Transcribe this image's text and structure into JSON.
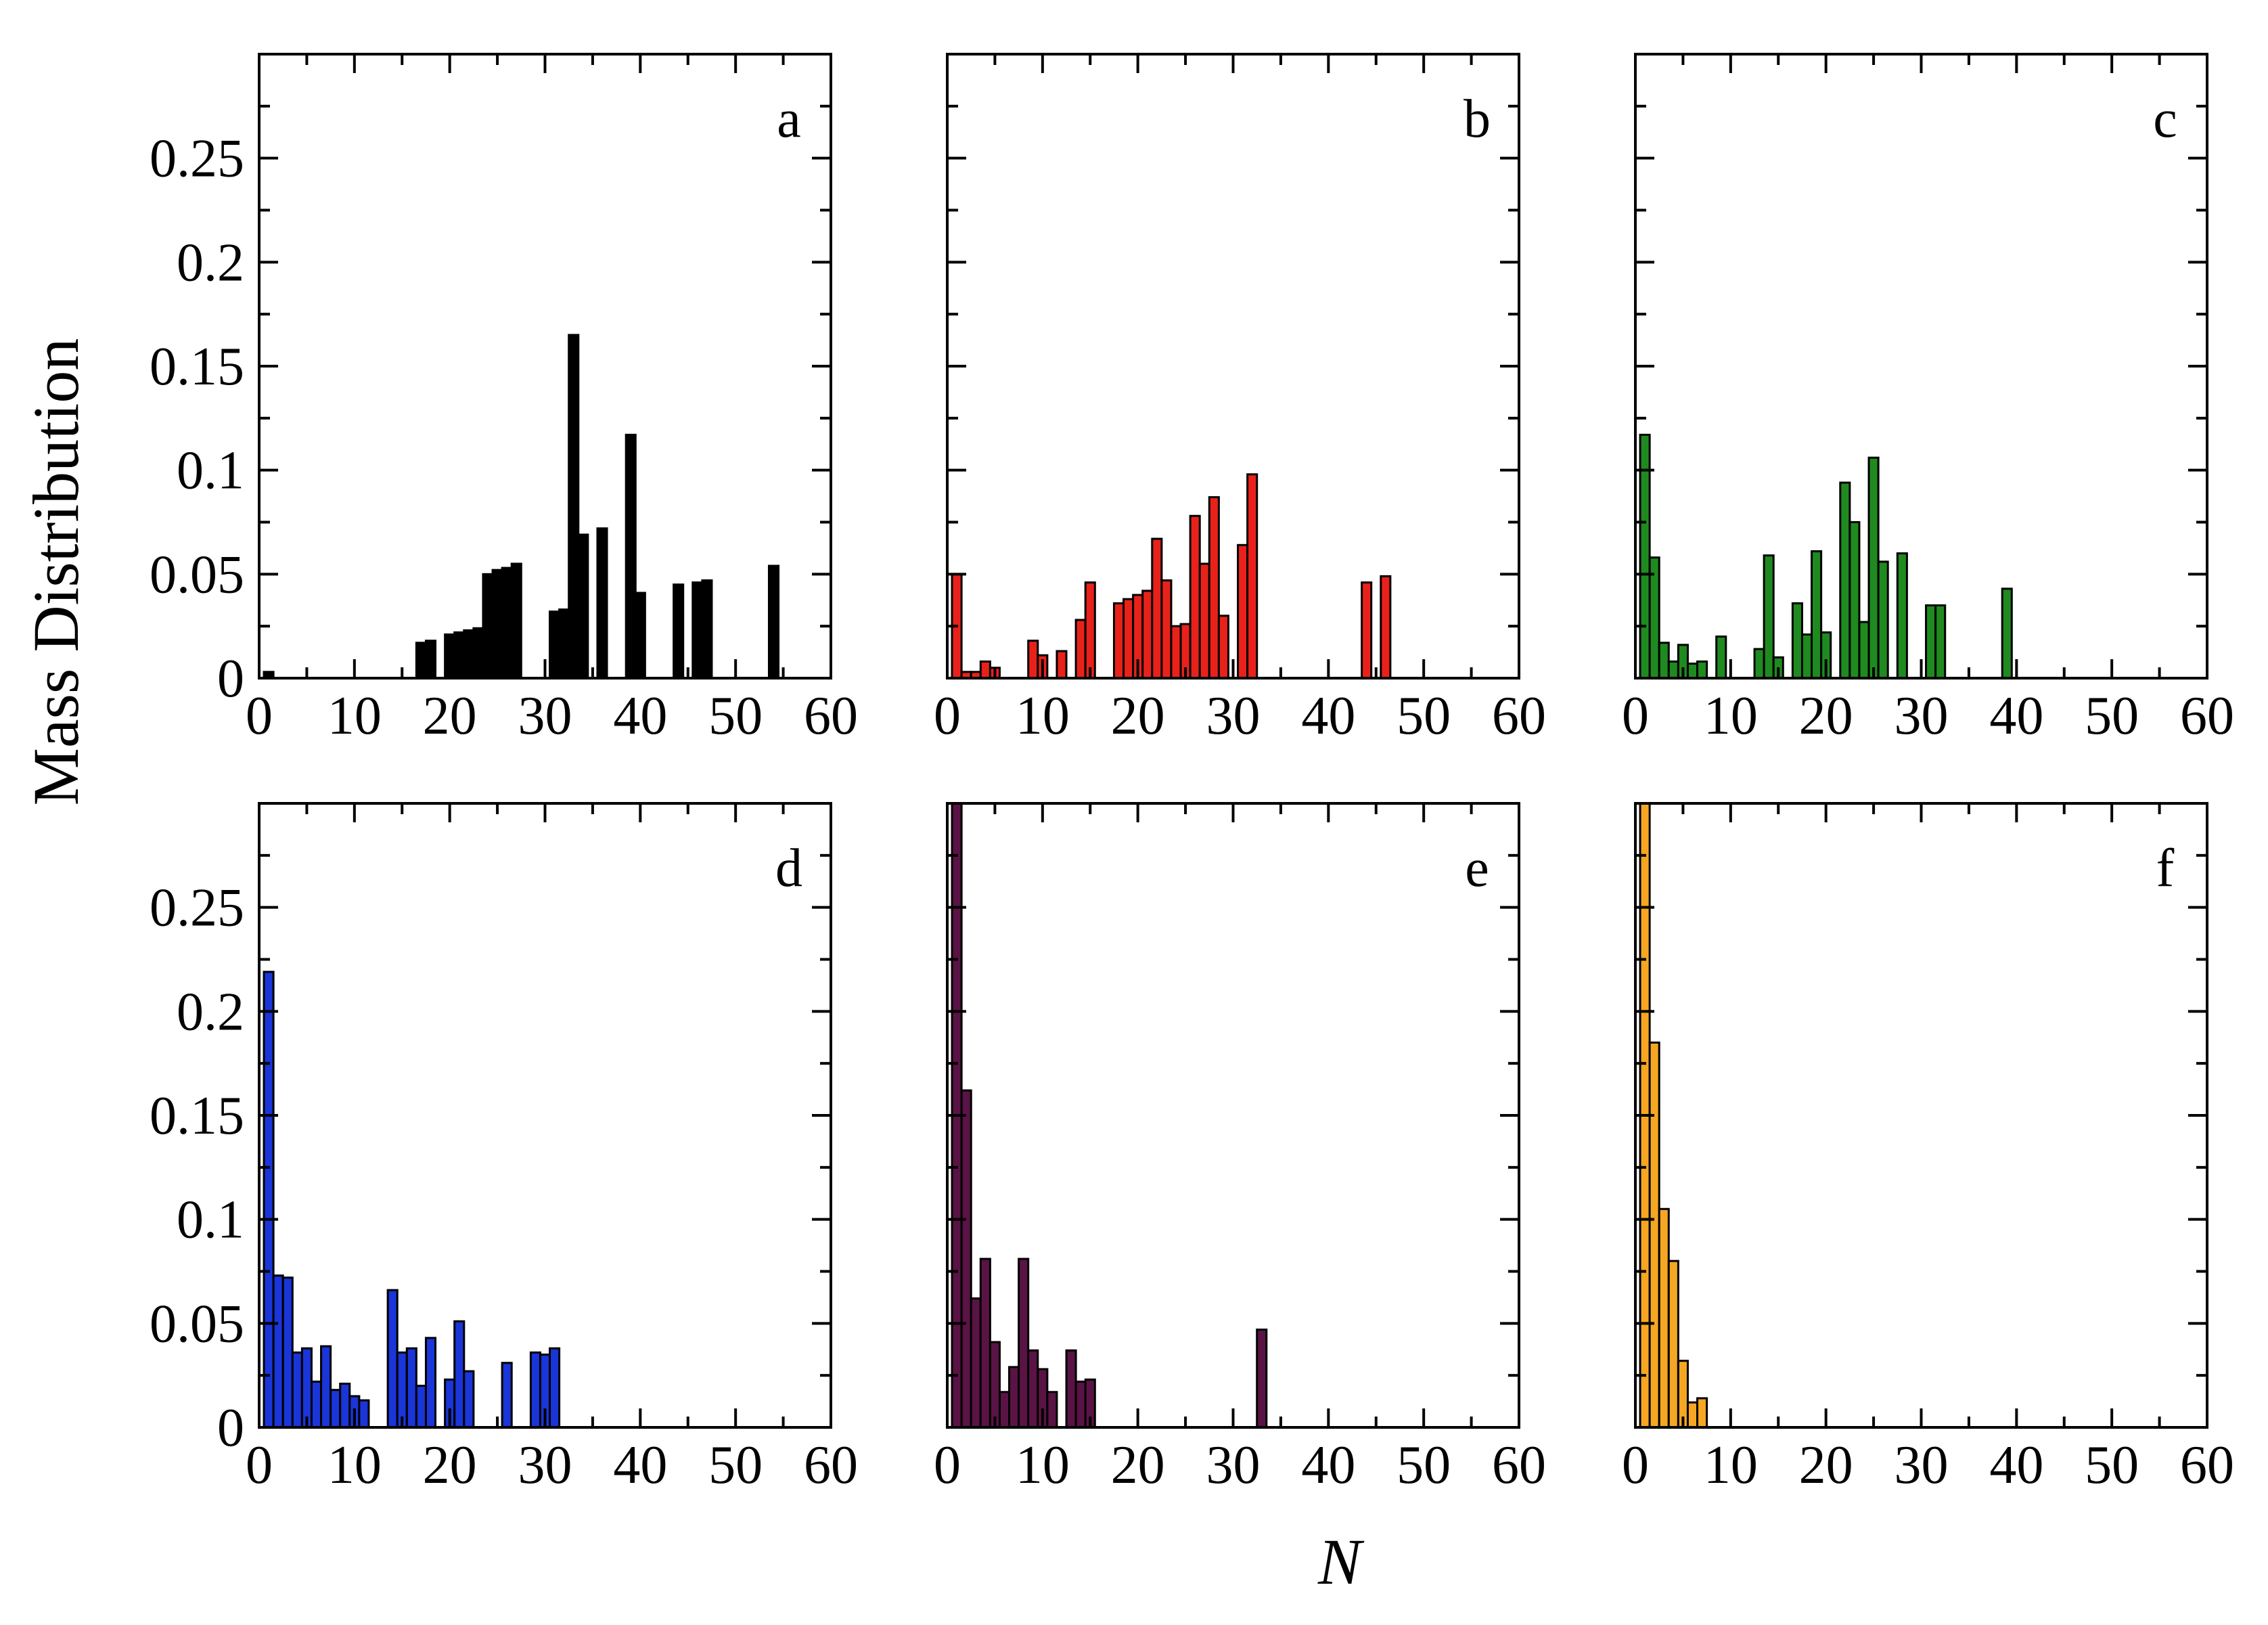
{
  "figure": {
    "ylabel": "Mass Distribution",
    "xlabel": "N"
  },
  "chart_data": [
    {
      "panel": "a",
      "type": "bar",
      "color": "#000000",
      "xlim": [
        0,
        60
      ],
      "ylim": [
        0,
        0.3
      ],
      "xticks": [
        0,
        10,
        20,
        30,
        40,
        50,
        60
      ],
      "yticks": [
        0,
        0.05,
        0.1,
        0.15,
        0.2,
        0.25
      ],
      "x": [
        1,
        17,
        18,
        20,
        21,
        22,
        23,
        24,
        25,
        26,
        27,
        31,
        32,
        33,
        34,
        36,
        39,
        40,
        44,
        46,
        47,
        54
      ],
      "values": [
        0.003,
        0.017,
        0.018,
        0.021,
        0.022,
        0.023,
        0.024,
        0.05,
        0.052,
        0.053,
        0.055,
        0.032,
        0.033,
        0.165,
        0.069,
        0.072,
        0.117,
        0.041,
        0.045,
        0.046,
        0.047,
        0.054
      ]
    },
    {
      "panel": "b",
      "type": "bar",
      "color": "#e8221b",
      "xlim": [
        0,
        60
      ],
      "ylim": [
        0,
        0.3
      ],
      "xticks": [
        0,
        10,
        20,
        30,
        40,
        50,
        60
      ],
      "yticks": [
        0,
        0.05,
        0.1,
        0.15,
        0.2,
        0.25
      ],
      "x": [
        1,
        2,
        3,
        4,
        5,
        9,
        10,
        12,
        14,
        15,
        18,
        19,
        20,
        21,
        22,
        23,
        24,
        25,
        26,
        27,
        28,
        29,
        31,
        32,
        44,
        46
      ],
      "values": [
        0.05,
        0.003,
        0.003,
        0.008,
        0.005,
        0.018,
        0.011,
        0.013,
        0.028,
        0.046,
        0.036,
        0.038,
        0.04,
        0.042,
        0.067,
        0.047,
        0.025,
        0.026,
        0.078,
        0.055,
        0.087,
        0.03,
        0.064,
        0.098,
        0.046,
        0.049
      ]
    },
    {
      "panel": "c",
      "type": "bar",
      "color": "#1f8a1f",
      "xlim": [
        0,
        60
      ],
      "ylim": [
        0,
        0.3
      ],
      "xticks": [
        0,
        10,
        20,
        30,
        40,
        50,
        60
      ],
      "yticks": [
        0,
        0.05,
        0.1,
        0.15,
        0.2,
        0.25
      ],
      "x": [
        1,
        2,
        3,
        4,
        5,
        6,
        7,
        9,
        13,
        14,
        15,
        17,
        18,
        19,
        20,
        22,
        23,
        24,
        25,
        26,
        28,
        31,
        32,
        39
      ],
      "values": [
        0.117,
        0.058,
        0.017,
        0.008,
        0.016,
        0.007,
        0.008,
        0.02,
        0.014,
        0.059,
        0.01,
        0.036,
        0.021,
        0.061,
        0.022,
        0.094,
        0.075,
        0.027,
        0.106,
        0.056,
        0.06,
        0.035,
        0.035,
        0.043
      ]
    },
    {
      "panel": "d",
      "type": "bar",
      "color": "#1a35d8",
      "xlim": [
        0,
        60
      ],
      "ylim": [
        0,
        0.3
      ],
      "xticks": [
        0,
        10,
        20,
        30,
        40,
        50,
        60
      ],
      "yticks": [
        0,
        0.05,
        0.1,
        0.15,
        0.2,
        0.25
      ],
      "x": [
        1,
        2,
        3,
        4,
        5,
        6,
        7,
        8,
        9,
        10,
        11,
        14,
        15,
        16,
        17,
        18,
        20,
        21,
        22,
        26,
        29,
        30,
        31
      ],
      "values": [
        0.219,
        0.073,
        0.072,
        0.036,
        0.038,
        0.022,
        0.039,
        0.018,
        0.021,
        0.015,
        0.013,
        0.066,
        0.036,
        0.038,
        0.02,
        0.043,
        0.023,
        0.051,
        0.027,
        0.031,
        0.036,
        0.035,
        0.038
      ]
    },
    {
      "panel": "e",
      "type": "bar",
      "color": "#5a1345",
      "xlim": [
        0,
        60
      ],
      "ylim": [
        0,
        0.3
      ],
      "xticks": [
        0,
        10,
        20,
        30,
        40,
        50,
        60
      ],
      "yticks": [
        0,
        0.05,
        0.1,
        0.15,
        0.2,
        0.25
      ],
      "x": [
        1,
        2,
        3,
        4,
        5,
        6,
        7,
        8,
        9,
        10,
        11,
        13,
        14,
        15,
        33
      ],
      "values": [
        0.3,
        0.162,
        0.062,
        0.081,
        0.041,
        0.017,
        0.029,
        0.081,
        0.037,
        0.028,
        0.017,
        0.037,
        0.022,
        0.023,
        0.047
      ]
    },
    {
      "panel": "f",
      "type": "bar",
      "color": "#f5a623",
      "xlim": [
        0,
        60
      ],
      "ylim": [
        0,
        0.3
      ],
      "xticks": [
        0,
        10,
        20,
        30,
        40,
        50,
        60
      ],
      "yticks": [
        0,
        0.05,
        0.1,
        0.15,
        0.2,
        0.25
      ],
      "x": [
        1,
        2,
        3,
        4,
        5,
        6,
        7
      ],
      "values": [
        0.3,
        0.185,
        0.105,
        0.08,
        0.032,
        0.012,
        0.014
      ]
    }
  ]
}
